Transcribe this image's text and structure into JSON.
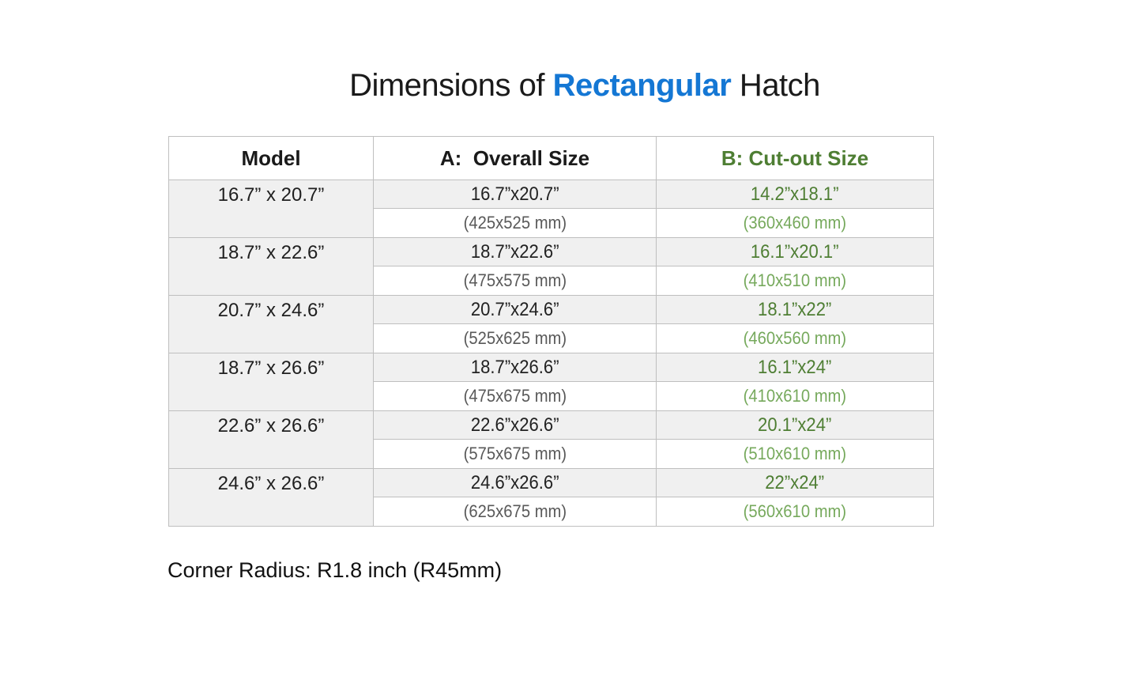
{
  "title": {
    "prefix": "Dimensions of ",
    "highlight": "Rectangular",
    "suffix": " Hatch"
  },
  "colors": {
    "title_highlight_blue": "#1477d4",
    "cutout_green_dark": "#4e7e33",
    "cutout_green_light": "#76a95c",
    "overall_mm_gray": "#595959",
    "row_shade": "#f0f0f0",
    "border_gray": "#bfbfbf"
  },
  "table": {
    "headers": [
      {
        "label": "Model"
      },
      {
        "label": "A:  Overall Size"
      },
      {
        "label": "B: Cut-out Size"
      }
    ],
    "rows": [
      {
        "model": "16.7” x 20.7”",
        "overall_inch": "16.7”x20.7”",
        "overall_mm": "(425x525 mm)",
        "cutout_inch": "14.2”x18.1”",
        "cutout_mm": "(360x460 mm)"
      },
      {
        "model": "18.7” x 22.6”",
        "overall_inch": "18.7”x22.6”",
        "overall_mm": "(475x575 mm)",
        "cutout_inch": "16.1”x20.1”",
        "cutout_mm": "(410x510 mm)"
      },
      {
        "model": "20.7” x 24.6”",
        "overall_inch": "20.7”x24.6”",
        "overall_mm": "(525x625 mm)",
        "cutout_inch": "18.1”x22”",
        "cutout_mm": "(460x560 mm)"
      },
      {
        "model": "18.7” x 26.6”",
        "overall_inch": "18.7”x26.6”",
        "overall_mm": "(475x675 mm)",
        "cutout_inch": "16.1”x24”",
        "cutout_mm": "(410x610 mm)"
      },
      {
        "model": "22.6” x 26.6”",
        "overall_inch": "22.6”x26.6”",
        "overall_mm": "(575x675 mm)",
        "cutout_inch": "20.1”x24”",
        "cutout_mm": "(510x610 mm)"
      },
      {
        "model": "24.6” x 26.6”",
        "overall_inch": "24.6”x26.6”",
        "overall_mm": "(625x675 mm)",
        "cutout_inch": "22”x24”",
        "cutout_mm": "(560x610 mm)"
      }
    ]
  },
  "footnote": "Corner Radius: R1.8 inch (R45mm)"
}
